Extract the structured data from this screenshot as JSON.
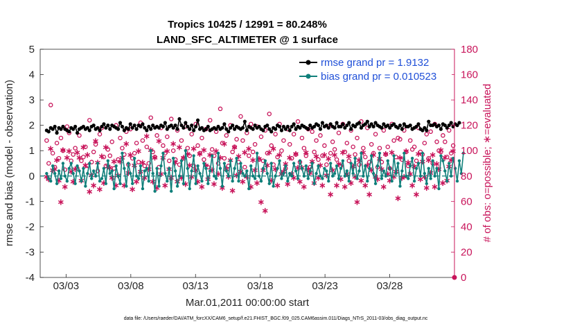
{
  "chart_data": {
    "type": "line",
    "title_line1": "Tropics 10425 / 12991 = 80.248%",
    "title_line2": "LAND_SFC_ALTIMETER @ 1 surface",
    "xlabel": "Mar.01,2011 00:00:00 start",
    "ylabel_left": "rmse and bias (model - observation)",
    "ylabel_right": "# of obs: o=possible; ∗=evaluated",
    "xlim": [
      1,
      33
    ],
    "ylim_left": [
      -4,
      5
    ],
    "ylim_right": [
      0,
      180
    ],
    "xticks": [
      {
        "value": 3,
        "label": "03/03"
      },
      {
        "value": 8,
        "label": "03/08"
      },
      {
        "value": 13,
        "label": "03/13"
      },
      {
        "value": 18,
        "label": "03/18"
      },
      {
        "value": 23,
        "label": "03/23"
      },
      {
        "value": 28,
        "label": "03/28"
      }
    ],
    "yticks_left": [
      5,
      4,
      3,
      2,
      1,
      0,
      -1,
      -2,
      -3,
      -4
    ],
    "yticks_right": [
      180,
      160,
      140,
      120,
      100,
      80,
      60,
      40,
      20,
      0
    ],
    "legend": [
      {
        "label": "rmse grand pr = 1.9132",
        "color": "#000000"
      },
      {
        "label": "bias grand pr = 0.010523",
        "color": "#0f7f7a"
      }
    ],
    "series": [
      {
        "name": "rmse",
        "color": "#000000",
        "values": [
          1.8,
          1.75,
          1.9,
          1.85,
          1.95,
          1.7,
          1.9,
          1.85,
          1.95,
          1.85,
          1.8,
          1.75,
          1.9,
          1.85,
          1.95,
          1.7,
          1.85,
          1.9,
          1.95,
          1.85,
          1.9,
          1.8,
          1.95,
          2.0,
          1.85,
          1.9,
          1.8,
          1.95,
          2.05,
          1.9,
          2.0,
          1.85,
          2.0,
          1.95,
          1.9,
          1.85,
          2.1,
          1.95,
          1.8,
          1.9,
          1.85,
          2.05,
          1.9,
          2.0,
          1.85,
          2.0,
          1.95,
          2.05,
          1.9,
          1.8,
          1.95,
          1.85,
          2.0,
          1.9,
          1.95,
          1.9,
          2.0,
          1.95,
          2.1,
          1.85,
          1.95,
          2.0,
          1.9,
          2.0,
          1.85,
          2.25,
          2.0,
          1.9,
          2.1,
          1.95,
          1.85,
          2.0,
          1.8,
          1.95,
          2.2,
          1.85,
          1.9,
          1.8,
          1.85,
          1.95,
          1.8,
          1.85,
          1.9,
          1.85,
          1.95,
          1.85,
          1.9,
          2.05,
          1.85,
          1.75,
          1.9,
          2.0,
          1.85,
          1.95,
          1.9,
          1.85,
          1.9,
          2.15,
          1.8,
          1.95,
          1.9,
          1.85,
          2.0,
          1.9,
          1.95,
          1.85,
          1.8,
          1.95,
          2.0,
          1.85,
          1.75,
          1.9,
          1.85,
          2.0,
          1.95,
          1.8,
          1.95,
          1.85,
          1.95,
          1.8,
          1.95,
          2.05,
          1.85,
          1.95,
          1.9,
          2.0,
          1.95,
          1.9,
          1.85,
          2.0,
          1.9,
          1.95,
          2.05,
          2.0,
          1.85,
          2.1,
          1.95,
          2.0,
          1.9,
          2.05,
          1.95,
          1.9,
          2.1,
          1.95,
          1.95,
          2.05,
          1.9,
          2.0,
          2.1,
          1.85,
          2.0,
          1.95,
          2.05,
          2.1,
          1.9,
          2.0,
          2.05,
          2.15,
          1.95,
          2.05,
          1.95,
          2.1,
          2.0,
          1.95,
          1.9,
          2.05,
          1.95,
          2.0,
          1.9,
          2.0,
          2.05,
          1.95,
          1.9,
          2.0,
          1.85,
          2.05,
          1.95,
          1.95,
          2.0,
          1.85,
          1.9,
          1.95,
          2.05,
          1.85,
          1.8,
          1.9,
          1.8,
          2.15,
          2.0,
          2.0,
          2.05,
          1.95,
          2.0,
          1.85,
          2.05,
          2.0,
          1.9,
          2.0,
          2.1,
          1.95,
          2.05,
          2.0,
          2.1
        ]
      },
      {
        "name": "bias",
        "color": "#0f7f7a",
        "values": [
          0.1,
          -0.1,
          -0.2,
          0.4,
          0.1,
          -0.3,
          0.2,
          -0.1,
          0.5,
          0.0,
          -0.2,
          0.3,
          0.5,
          0.1,
          -0.3,
          0.4,
          0.2,
          -0.2,
          0.3,
          -0.4,
          0.1,
          0.5,
          -0.1,
          0.2,
          0.0,
          0.5,
          -0.2,
          -0.1,
          0.3,
          -0.3,
          0.6,
          0.1,
          0.2,
          -0.5,
          0.4,
          0.0,
          -0.3,
          0.9,
          0.3,
          -0.4,
          0.5,
          0.1,
          -0.3,
          0.7,
          0.0,
          -0.1,
          0.4,
          -0.5,
          0.2,
          0.3,
          -0.2,
          1.0,
          0.1,
          -0.6,
          0.3,
          -0.4,
          0.4,
          0.9,
          0.1,
          -0.2,
          0.3,
          -0.6,
          0.7,
          0.2,
          -0.4,
          0.0,
          0.6,
          -0.3,
          1.0,
          0.3,
          -0.5,
          0.2,
          0.8,
          -0.3,
          0.4,
          0.1,
          -0.2,
          0.5,
          0.3,
          -0.3,
          0.2,
          0.8,
          0.0,
          -0.1,
          0.9,
          0.3,
          -0.4,
          0.5,
          0.2,
          0.0,
          0.6,
          -0.2,
          0.3,
          0.7,
          -0.2,
          0.5,
          0.1,
          0.0,
          0.2,
          -0.5,
          0.4,
          0.0,
          -0.1,
          0.9,
          0.0,
          -0.2,
          0.3,
          0.6,
          0.1,
          -0.3,
          0.5,
          -0.4,
          0.0,
          0.3,
          0.6,
          -0.1,
          0.1,
          0.4,
          -0.2,
          0.1,
          0.0,
          0.5,
          0.2,
          -0.1,
          0.6,
          0.3,
          0.0,
          0.4,
          -0.1,
          0.2,
          0.5,
          -0.3,
          0.1,
          0.4,
          0.0,
          -0.1,
          0.3,
          0.2,
          -0.2,
          0.5,
          0.0,
          0.1,
          0.4,
          -0.1,
          0.3,
          0.6,
          0.0,
          0.2,
          -0.2,
          0.5,
          0.1,
          0.7,
          -0.1,
          0.2,
          0.9,
          0.0,
          0.4,
          -0.2,
          0.3,
          0.8,
          0.1,
          -0.3,
          0.4,
          0.9,
          -0.1,
          0.2,
          0.0,
          0.6,
          0.3,
          -0.2,
          0.8,
          0.1,
          0.5,
          -0.4,
          0.2,
          0.9,
          0.0,
          -0.1,
          0.4,
          0.7,
          -0.2,
          0.3,
          0.5,
          0.0,
          0.9,
          0.1,
          -0.3,
          0.3,
          -0.1,
          0.6,
          0.0,
          0.3,
          -0.5,
          0.8,
          0.6,
          0.2,
          -0.2,
          0.5,
          0.0,
          0.7,
          0.3,
          -0.2,
          0.6,
          0.1,
          0.9
        ]
      },
      {
        "name": "possible",
        "color": "#c8145a",
        "axis": "right",
        "values": [
          108,
          90,
          136,
          98,
          87,
          106,
          94,
          110,
          100,
          85,
          119,
          114,
          92,
          97,
          102,
          86,
          112,
          92,
          95,
          103,
          88,
          124,
          91,
          99,
          105,
          84,
          113,
          118,
          95,
          88,
          101,
          96,
          107,
          86,
          120,
          93,
          110,
          102,
          97,
          115,
          89,
          117,
          94,
          98,
          106,
          91,
          122,
          108,
          88,
          103,
          90,
          126,
          99,
          95,
          112,
          87,
          118,
          104,
          98,
          111,
          92,
          125,
          100,
          93,
          116,
          89,
          108,
          94,
          119,
          102,
          96,
          113,
          88,
          121,
          104,
          98,
          110,
          93,
          117,
          87,
          124,
          101,
          96,
          115,
          90,
          133,
          106,
          94,
          112,
          88,
          120,
          99,
          103,
          109,
          91,
          127,
          108,
          87,
          114,
          96,
          121,
          99,
          105,
          119,
          93,
          111,
          92,
          116,
          98,
          129,
          104,
          89,
          113,
          95,
          121,
          100,
          108,
          86,
          117,
          105,
          94,
          113,
          97,
          123,
          91,
          110,
          102,
          96,
          117,
          87,
          115,
          99,
          108,
          93,
          112,
          96,
          104,
          89,
          119,
          98,
          107,
          101,
          93,
          114,
          88,
          121,
          99,
          106,
          92,
          116,
          103,
          97,
          110,
          89,
          123,
          102,
          95,
          118,
          91,
          105,
          98,
          113,
          87,
          102,
          91,
          116,
          97,
          103,
          86,
          121,
          108,
          95,
          110,
          109,
          93,
          116,
          99,
          88,
          108,
          101,
          103,
          92,
          118,
          99,
          97,
          106,
          113,
          94,
          115,
          90,
          121,
          107,
          100,
          99,
          112,
          107,
          95,
          116,
          98,
          104
        ]
      },
      {
        "name": "evaluated",
        "color": "#c8145a",
        "axis": "right",
        "values": [
          80,
          78,
          102,
          85,
          86,
          93,
          77,
          60,
          101,
          72,
          95,
          100,
          84,
          76,
          86,
          99,
          95,
          77,
          103,
          89,
          97,
          68,
          81,
          73,
          108,
          91,
          70,
          96,
          75,
          103,
          88,
          87,
          79,
          92,
          73,
          81,
          92,
          95,
          73,
          106,
          83,
          97,
          70,
          89,
          76,
          100,
          84,
          91,
          79,
          112,
          86,
          101,
          76,
          95,
          71,
          108,
          82,
          95,
          73,
          100,
          86,
          79,
          106,
          91,
          76,
          103,
          79,
          95,
          74,
          98,
          89,
          80,
          102,
          85,
          76,
          98,
          72,
          101,
          89,
          78,
          97,
          85,
          74,
          100,
          82,
          95,
          71,
          106,
          86,
          80,
          93,
          69,
          103,
          81,
          96,
          84,
          76,
          99,
          80,
          102,
          72,
          93,
          85,
          75,
          94,
          60,
          85,
          53,
          89,
          99,
          77,
          102,
          86,
          73,
          97,
          82,
          84,
          90,
          74,
          95,
          82,
          79,
          98,
          87,
          76,
          87,
          72,
          99,
          86,
          83,
          92,
          75,
          96,
          79,
          89,
          73,
          97,
          81,
          94,
          66,
          85,
          97,
          73,
          90,
          78,
          99,
          72,
          82,
          96,
          75,
          88,
          80,
          60,
          93,
          77,
          99,
          73,
          89,
          66,
          85,
          97,
          80,
          78,
          94,
          86,
          72,
          98,
          82,
          77,
          99,
          80,
          84,
          63,
          95,
          79,
          80,
          100,
          91,
          82,
          73,
          88,
          66,
          98,
          78,
          92,
          80,
          71,
          93,
          83,
          97,
          72,
          90,
          86,
          101,
          75,
          95,
          77,
          88,
          93,
          100
        ]
      }
    ],
    "n_points": 200
  },
  "footer": {
    "datafile": "data file: /Users/raeder/DAI/ATM_forcXX/CAM6_setup/f.e21.FHIST_BGC.f09_025.CAM6assim.011/Diags_NTrS_2011-03/obs_diag_output.nc"
  },
  "colors": {
    "rmse": "#000000",
    "bias": "#0f7f7a",
    "obs": "#c8145a",
    "legend_text": "#1f4fd8"
  }
}
